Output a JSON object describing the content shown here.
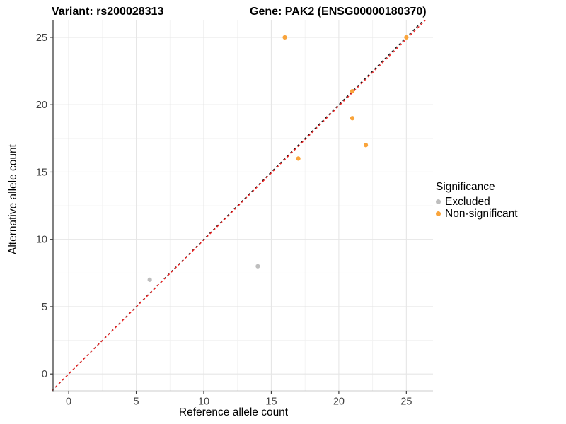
{
  "header": {
    "variant_title": "Variant: rs200028313",
    "gene_title": "Gene: PAK2 (ENSG00000180370)"
  },
  "legend": {
    "title": "Significance",
    "items": [
      {
        "label": "Excluded",
        "color": "#BEBEBE"
      },
      {
        "label": "Non-significant",
        "color": "#F9A43B"
      }
    ]
  },
  "chart_data": {
    "type": "scatter",
    "title": "",
    "xlabel": "Reference allele count",
    "ylabel": "Alternative allele count",
    "xlim": [
      -1.25,
      27.0
    ],
    "ylim": [
      -1.25,
      26.25
    ],
    "x_ticks": [
      0,
      5,
      10,
      15,
      20,
      25
    ],
    "y_ticks": [
      0,
      5,
      10,
      15,
      20,
      25
    ],
    "minor_ticks": [
      2.5,
      7.5,
      12.5,
      17.5,
      22.5
    ],
    "grid": true,
    "legend_position": "right",
    "series": [
      {
        "name": "Excluded",
        "color": "#BEBEBE",
        "points": [
          [
            6,
            7
          ],
          [
            14,
            8
          ]
        ]
      },
      {
        "name": "Non-significant",
        "color": "#F9A43B",
        "points": [
          [
            16,
            25
          ],
          [
            25,
            25
          ],
          [
            21,
            21
          ],
          [
            21,
            19
          ],
          [
            22,
            17
          ],
          [
            17,
            16
          ]
        ]
      }
    ],
    "lines": [
      {
        "name": "identity-line",
        "color": "#1A1A1A",
        "dash": true,
        "slope": 1.0,
        "intercept": 0
      },
      {
        "name": "fit-line",
        "color": "#EE2222",
        "dash": true,
        "slope": 0.995,
        "intercept": 0
      }
    ]
  },
  "style_colors": {
    "grid_major": "#E6E6E6",
    "grid_minor": "#F2F2F2",
    "axis_line": "#3C3C3C",
    "tick_label": "#404040"
  }
}
